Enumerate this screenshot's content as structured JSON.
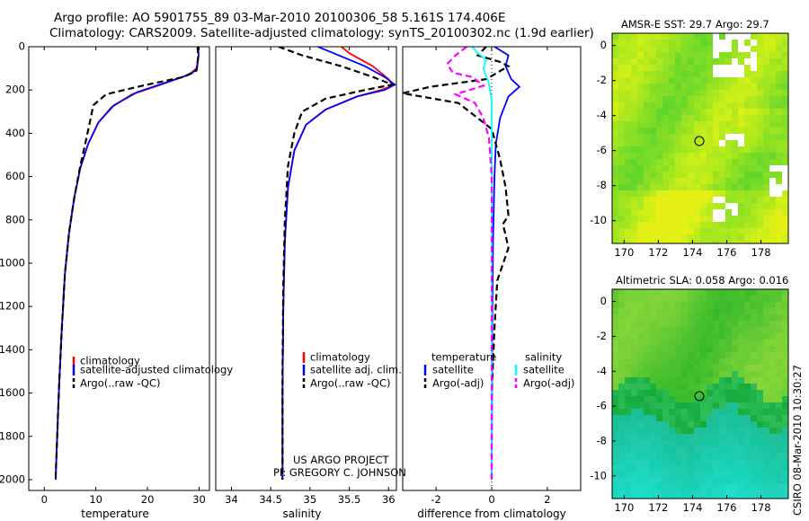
{
  "header": {
    "line1": "Argo profile: AO 5901755_89 03-Mar-2010 20100306_58 5.161S 174.406E",
    "line2": "Climatology: CARS2009. Satellite-adjusted climatology: synTS_20100302.nc (1.9d earlier)"
  },
  "colors": {
    "climatology": "#ff0000",
    "satellite": "#0000ff",
    "argo": "#000000",
    "salinity_satellite": "#00ffff",
    "salinity_argo": "#ff00ff"
  },
  "chart_data": [
    {
      "type": "line",
      "name": "temperature-profile",
      "xlabel": "temperature",
      "ylabel": "",
      "xlim": [
        -3,
        32
      ],
      "ylim": [
        2050,
        0
      ],
      "xticks": [
        "0",
        "10",
        "20",
        "30"
      ],
      "xtick_values": [
        0,
        10,
        20,
        30
      ],
      "yticks": [
        "0",
        "200",
        "400",
        "600",
        "800",
        "1000",
        "1200",
        "1400",
        "1600",
        "1800",
        "2000"
      ],
      "legend": [
        "climatology",
        "satellite-adjusted climatology",
        "Argo(..raw -QC)"
      ],
      "series": [
        {
          "name": "climatology",
          "color": "climatology",
          "dash": "",
          "points": [
            [
              29.8,
              0
            ],
            [
              29.9,
              40
            ],
            [
              29.5,
              100
            ],
            [
              28,
              130
            ],
            [
              22,
              180
            ],
            [
              17,
              220
            ],
            [
              13,
              280
            ],
            [
              10.5,
              350
            ],
            [
              8.5,
              450
            ],
            [
              7,
              560
            ],
            [
              5.8,
              700
            ],
            [
              4.8,
              860
            ],
            [
              4,
              1050
            ],
            [
              3.4,
              1300
            ],
            [
              2.9,
              1550
            ],
            [
              2.5,
              1800
            ],
            [
              2.2,
              2000
            ]
          ]
        },
        {
          "name": "satellite-adjusted climatology",
          "color": "satellite",
          "dash": "",
          "points": [
            [
              29.8,
              0
            ],
            [
              29.9,
              40
            ],
            [
              29.6,
              100
            ],
            [
              28.5,
              125
            ],
            [
              23,
              170
            ],
            [
              18,
              210
            ],
            [
              13.5,
              270
            ],
            [
              10.5,
              350
            ],
            [
              8.5,
              450
            ],
            [
              7,
              560
            ],
            [
              5.8,
              700
            ],
            [
              4.8,
              860
            ],
            [
              4,
              1050
            ],
            [
              3.4,
              1300
            ],
            [
              2.9,
              1550
            ],
            [
              2.5,
              1800
            ],
            [
              2.2,
              2000
            ]
          ]
        },
        {
          "name": "Argo(..raw -QC)",
          "color": "argo",
          "dash": "7,4",
          "points": [
            [
              29.7,
              0
            ],
            [
              29.8,
              50
            ],
            [
              29.5,
              110
            ],
            [
              27,
              140
            ],
            [
              19,
              180
            ],
            [
              12,
              220
            ],
            [
              9.5,
              270
            ],
            [
              9,
              330
            ],
            [
              8.2,
              420
            ],
            [
              7,
              550
            ],
            [
              5.8,
              700
            ],
            [
              4.8,
              860
            ],
            [
              4,
              1050
            ],
            [
              3.4,
              1300
            ],
            [
              2.9,
              1550
            ],
            [
              2.5,
              1800
            ],
            [
              2.2,
              1990
            ]
          ]
        }
      ]
    },
    {
      "type": "line",
      "name": "salinity-profile",
      "xlabel": "salinity",
      "ylabel": "",
      "xlim": [
        33.8,
        36.1
      ],
      "ylim": [
        2050,
        0
      ],
      "xticks": [
        "34",
        "34.5",
        "35",
        "35.5",
        "36"
      ],
      "xtick_values": [
        34,
        34.5,
        35,
        35.5,
        36
      ],
      "legend": [
        "climatology",
        "satellite adj. clim.",
        "Argo(..raw -QC)"
      ],
      "series": [
        {
          "name": "climatology",
          "color": "climatology",
          "dash": "",
          "points": [
            [
              35.4,
              0
            ],
            [
              35.5,
              30
            ],
            [
              35.8,
              90
            ],
            [
              36,
              150
            ],
            [
              36.05,
              180
            ],
            [
              35.9,
              200
            ],
            [
              35.6,
              230
            ],
            [
              35.2,
              290
            ],
            [
              34.95,
              360
            ],
            [
              34.8,
              480
            ],
            [
              34.72,
              650
            ],
            [
              34.68,
              900
            ],
            [
              34.66,
              1200
            ],
            [
              34.65,
              1600
            ],
            [
              34.65,
              2000
            ]
          ]
        },
        {
          "name": "satellite adj. clim.",
          "color": "satellite",
          "dash": "",
          "points": [
            [
              35.1,
              0
            ],
            [
              35.3,
              30
            ],
            [
              35.7,
              90
            ],
            [
              35.95,
              140
            ],
            [
              36.08,
              175
            ],
            [
              35.95,
              200
            ],
            [
              35.6,
              230
            ],
            [
              35.2,
              290
            ],
            [
              34.95,
              360
            ],
            [
              34.8,
              480
            ],
            [
              34.72,
              650
            ],
            [
              34.68,
              900
            ],
            [
              34.66,
              1200
            ],
            [
              34.65,
              1600
            ],
            [
              34.65,
              2000
            ]
          ]
        },
        {
          "name": "Argo(..raw -QC)",
          "color": "argo",
          "dash": "7,4",
          "points": [
            [
              34.6,
              0
            ],
            [
              34.9,
              40
            ],
            [
              35.4,
              90
            ],
            [
              35.8,
              140
            ],
            [
              36.05,
              175
            ],
            [
              35.7,
              200
            ],
            [
              35.2,
              240
            ],
            [
              34.9,
              300
            ],
            [
              34.8,
              400
            ],
            [
              34.72,
              550
            ],
            [
              34.68,
              800
            ],
            [
              34.66,
              1100
            ],
            [
              34.65,
              1500
            ],
            [
              34.65,
              2000
            ]
          ]
        }
      ]
    },
    {
      "type": "line",
      "name": "difference-profile",
      "xlabel": "difference from climatology",
      "ylabel": "",
      "xlim": [
        -3.2,
        3.2
      ],
      "ylim": [
        2050,
        0
      ],
      "xticks": [
        "-2",
        "0",
        "2"
      ],
      "xtick_values": [
        -2,
        0,
        2
      ],
      "legend_left_title": "temperature",
      "legend_right_title": "salinity",
      "legend": [
        "satellite",
        "Argo(-adj)",
        "satellite",
        "Argo(-adj)"
      ],
      "series": [
        {
          "name": "temperature satellite",
          "color": "satellite",
          "dash": "",
          "points": [
            [
              0.1,
              0
            ],
            [
              0.6,
              40
            ],
            [
              0.5,
              90
            ],
            [
              0.7,
              150
            ],
            [
              1,
              185
            ],
            [
              0.6,
              230
            ],
            [
              0.3,
              330
            ],
            [
              0.15,
              450
            ],
            [
              0.1,
              600
            ],
            [
              0.05,
              900
            ],
            [
              0.02,
              1300
            ],
            [
              0.01,
              1700
            ],
            [
              0,
              2000
            ]
          ]
        },
        {
          "name": "temperature Argo(-adj)",
          "color": "argo",
          "dash": "7,4",
          "points": [
            [
              -0.2,
              0
            ],
            [
              -0.5,
              40
            ],
            [
              0.3,
              70
            ],
            [
              0.6,
              90
            ],
            [
              -0.2,
              150
            ],
            [
              -2.2,
              185
            ],
            [
              -3.2,
              215
            ],
            [
              -1.2,
              260
            ],
            [
              0,
              380
            ],
            [
              0.3,
              520
            ],
            [
              0.5,
              650
            ],
            [
              0.6,
              780
            ],
            [
              0.4,
              820
            ],
            [
              0.5,
              870
            ],
            [
              0.6,
              930
            ],
            [
              0.2,
              1080
            ],
            [
              0.1,
              1300
            ],
            [
              0,
              1600
            ],
            [
              0,
              2000
            ]
          ]
        },
        {
          "name": "salinity satellite",
          "color": "salinity_satellite",
          "dash": "",
          "points": [
            [
              -0.7,
              0
            ],
            [
              -0.5,
              30
            ],
            [
              -0.2,
              60
            ],
            [
              -0.3,
              100
            ],
            [
              -0.1,
              170
            ],
            [
              0,
              250
            ],
            [
              0,
              400
            ],
            [
              0.01,
              700
            ],
            [
              0,
              1200
            ],
            [
              0,
              2000
            ]
          ]
        },
        {
          "name": "salinity Argo(-adj)",
          "color": "salinity_argo",
          "dash": "7,4",
          "points": [
            [
              -0.9,
              0
            ],
            [
              -1.3,
              40
            ],
            [
              -1.6,
              80
            ],
            [
              -1.4,
              120
            ],
            [
              -0.7,
              140
            ],
            [
              -0.3,
              180
            ],
            [
              -1.3,
              220
            ],
            [
              -0.6,
              260
            ],
            [
              -0.3,
              330
            ],
            [
              -0.1,
              420
            ],
            [
              0,
              600
            ],
            [
              0,
              2000
            ]
          ]
        }
      ]
    }
  ],
  "sst_map": {
    "title": "AMSR-E SST: 29.7 Argo: 29.7",
    "xticks": [
      "170",
      "172",
      "174",
      "176",
      "178"
    ],
    "yticks": [
      "0",
      "-2",
      "-4",
      "-6",
      "-8",
      "-10"
    ],
    "argo_position": {
      "lon": 174.4,
      "lat": -5.2
    }
  },
  "sla_map": {
    "title": "Altimetric SLA: 0.058 Argo: 0.016",
    "xticks": [
      "170",
      "172",
      "174",
      "176",
      "178"
    ],
    "yticks": [
      "0",
      "-2",
      "-4",
      "-6",
      "-8",
      "-10"
    ],
    "argo_position": {
      "lon": 174.4,
      "lat": -5.2
    }
  },
  "footer": {
    "project": "US ARGO PROJECT",
    "pi": "PI: GREGORY C. JOHNSON",
    "stamp": "CSIRO 08-Mar-2010 10:30:27"
  }
}
